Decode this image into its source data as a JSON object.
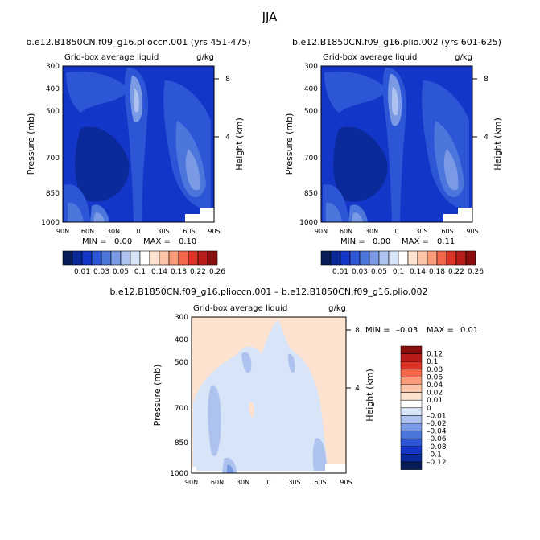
{
  "figure": {
    "season": "JJA"
  },
  "colors": {
    "panel_scale": [
      "#081d58",
      "#0a2a9a",
      "#1336c8",
      "#2d56d6",
      "#4d76dd",
      "#7a9ae6",
      "#aec2ef",
      "#d8e4f7",
      "#ffffff",
      "#fde2cf",
      "#fcc4a6",
      "#f99a78",
      "#f2664a",
      "#de3427",
      "#b81d1b",
      "#8c0d0d"
    ],
    "diff_scale": [
      "#081d58",
      "#0a2a9a",
      "#1336c8",
      "#2d56d6",
      "#4d76dd",
      "#7a9ae6",
      "#aec2ef",
      "#d8e4f7",
      "#ffffff",
      "#fde2cf",
      "#fcc4a6",
      "#f99a78",
      "#f2664a",
      "#de3427",
      "#b81d1b",
      "#8c0d0d"
    ]
  },
  "chart_data": [
    {
      "type": "heatmap",
      "title": "b.e12.B1850CN.f09_g16.plioccn.001 (yrs 451-475)",
      "left_label": "Grid-box average liquid",
      "units": "g/kg",
      "xlabel": "",
      "ylabel": "Pressure (mb)",
      "ylabel_right": "Height (km)",
      "x_ticks": [
        "90N",
        "60N",
        "30N",
        "0",
        "30S",
        "60S",
        "90S"
      ],
      "y_ticks": [
        "300",
        "400",
        "500",
        "700",
        "850",
        "1000"
      ],
      "y_ticks_right": [
        "8",
        "4"
      ],
      "min_label": "MIN =",
      "min_value": "0.00",
      "max_label": "MAX =",
      "max_value": "0.10",
      "colorbar_labels": [
        "0.01",
        "0.03",
        "0.05",
        "0.1",
        "0.14",
        "0.18",
        "0.22",
        "0.26"
      ]
    },
    {
      "type": "heatmap",
      "title": "b.e12.B1850CN.f09_g16.plio.002 (yrs 601-625)",
      "left_label": "Grid-box average liquid",
      "units": "g/kg",
      "xlabel": "",
      "ylabel": "Pressure (mb)",
      "ylabel_right": "Height (km)",
      "x_ticks": [
        "90N",
        "60N",
        "30N",
        "0",
        "30S",
        "60S",
        "90S"
      ],
      "y_ticks": [
        "300",
        "400",
        "500",
        "700",
        "850",
        "1000"
      ],
      "y_ticks_right": [
        "8",
        "4"
      ],
      "min_label": "MIN =",
      "min_value": "0.00",
      "max_label": "MAX =",
      "max_value": "0.11",
      "colorbar_labels": [
        "0.01",
        "0.03",
        "0.05",
        "0.1",
        "0.14",
        "0.18",
        "0.22",
        "0.26"
      ]
    },
    {
      "type": "heatmap",
      "title": "b.e12.B1850CN.f09_g16.plioccn.001 – b.e12.B1850CN.f09_g16.plio.002",
      "left_label": "Grid-box average liquid",
      "units": "g/kg",
      "xlabel": "",
      "ylabel": "Pressure (mb)",
      "ylabel_right": "Height (km)",
      "x_ticks": [
        "90N",
        "60N",
        "30N",
        "0",
        "30S",
        "60S",
        "90S"
      ],
      "y_ticks": [
        "300",
        "400",
        "500",
        "700",
        "850",
        "1000"
      ],
      "y_ticks_right": [
        "8",
        "4"
      ],
      "min_label": "MIN =",
      "min_value": "–0.03",
      "max_label": "MAX =",
      "max_value": "0.01",
      "colorbar_labels": [
        "0.12",
        "0.1",
        "0.08",
        "0.06",
        "0.04",
        "0.02",
        "0.01",
        "0",
        "–0.01",
        "–0.02",
        "–0.04",
        "–0.06",
        "–0.08",
        "–0.1",
        "–0.12"
      ]
    }
  ]
}
